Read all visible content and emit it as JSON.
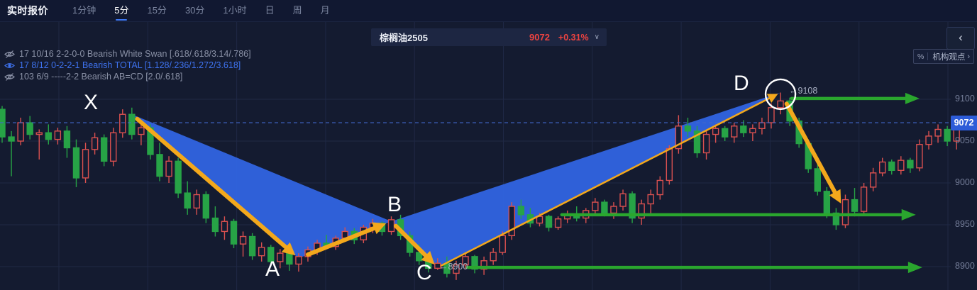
{
  "toolbar": {
    "title": "实时报价",
    "timeframes": [
      "1分钟",
      "5分",
      "15分",
      "30分",
      "1小时",
      "日",
      "周",
      "月"
    ],
    "active_timeframe": "5分"
  },
  "quote": {
    "symbol": "棕榈油2505",
    "price": "9072",
    "change_percent": "+0.31%"
  },
  "icons": {
    "chevron_left": "‹",
    "chevron_down": "∨",
    "angle_right": "›",
    "percent": "%"
  },
  "side_panel": {
    "institution_label": "机构观点"
  },
  "indicators": [
    {
      "visible": false,
      "text": "17 10/16 2-2-0-0 Bearish White Swan [.618/.618/3.14/.786]"
    },
    {
      "visible": true,
      "text": "17 8/12 0-2-2-1 Bearish TOTAL [1.128/.236/1.272/3.618]"
    },
    {
      "visible": false,
      "text": "103 6/9 -----2-2 Bearish AB=CD [2.0/.618]"
    }
  ],
  "annotations": {
    "d_label": "←9108",
    "c_label": "←8900"
  },
  "colors": {
    "up": "#d9504f",
    "down": "#27a346",
    "pattern_fill": "#3064e2",
    "pattern_arrow": "#f3a81c",
    "level_arrow": "#2aa62e",
    "price_line": "#4268cc",
    "grid": "#1f2845",
    "badge": "#2d5cd8"
  },
  "chart_data": {
    "type": "candlestick",
    "symbol": "棕榈油2505",
    "timeframe": "5分",
    "y_axis": {
      "ticks": [
        9100,
        9050,
        9000,
        8950,
        8900
      ],
      "current_price": 9072
    },
    "pattern": {
      "name": "Bearish TOTAL",
      "points": [
        {
          "label": "X",
          "i": 14.0,
          "price": 9082
        },
        {
          "label": "A",
          "i": 32.0,
          "price": 8910
        },
        {
          "label": "B",
          "i": 42.0,
          "price": 8954
        },
        {
          "label": "C",
          "i": 47.0,
          "price": 8899
        },
        {
          "label": "D",
          "i": 84.0,
          "price": 9108
        }
      ],
      "projection_end": {
        "i": 90.6,
        "price": 8974
      },
      "circle_point": {
        "i": 84.0,
        "price": 9106,
        "radius": 21
      }
    },
    "levels": [
      {
        "price": 9101,
        "from_i": 85.2,
        "to_i": 99.0
      },
      {
        "price": 8962,
        "from_i": 60.4,
        "to_i": 98.6
      },
      {
        "price": 8899,
        "from_i": 50.2,
        "to_i": 99.3
      }
    ],
    "candles": [
      [
        9088,
        9092,
        9048,
        9055
      ],
      [
        9055,
        9062,
        9008,
        9050
      ],
      [
        9050,
        9078,
        9045,
        9072
      ],
      [
        9072,
        9080,
        9052,
        9058
      ],
      [
        9058,
        9064,
        9028,
        9060
      ],
      [
        9060,
        9070,
        9046,
        9052
      ],
      [
        9052,
        9066,
        9046,
        9062
      ],
      [
        9062,
        9068,
        9030,
        9042
      ],
      [
        9042,
        9052,
        8995,
        9006
      ],
      [
        9006,
        9048,
        9000,
        9040
      ],
      [
        9040,
        9060,
        9034,
        9054
      ],
      [
        9054,
        9058,
        9020,
        9026
      ],
      [
        9026,
        9066,
        9020,
        9060
      ],
      [
        9060,
        9088,
        9054,
        9082
      ],
      [
        9082,
        9090,
        9052,
        9058
      ],
      [
        9058,
        9072,
        9045,
        9066
      ],
      [
        9066,
        9070,
        9028,
        9034
      ],
      [
        9034,
        9048,
        9002,
        9008
      ],
      [
        9008,
        9032,
        9000,
        9026
      ],
      [
        9026,
        9030,
        8982,
        8988
      ],
      [
        8988,
        9002,
        8962,
        8970
      ],
      [
        8970,
        8992,
        8962,
        8986
      ],
      [
        8986,
        8990,
        8952,
        8958
      ],
      [
        8958,
        8972,
        8936,
        8942
      ],
      [
        8942,
        8960,
        8932,
        8954
      ],
      [
        8954,
        8957,
        8922,
        8927
      ],
      [
        8927,
        8942,
        8912,
        8936
      ],
      [
        8936,
        8940,
        8908,
        8913
      ],
      [
        8913,
        8929,
        8906,
        8923
      ],
      [
        8923,
        8926,
        8900,
        8906
      ],
      [
        8906,
        8921,
        8898,
        8916
      ],
      [
        8916,
        8919,
        8895,
        8903
      ],
      [
        8903,
        8916,
        8894,
        8912
      ],
      [
        8912,
        8924,
        8906,
        8920
      ],
      [
        8920,
        8932,
        8914,
        8928
      ],
      [
        8928,
        8938,
        8922,
        8924
      ],
      [
        8924,
        8937,
        8920,
        8934
      ],
      [
        8934,
        8947,
        8930,
        8942
      ],
      [
        8942,
        8946,
        8927,
        8932
      ],
      [
        8932,
        8950,
        8928,
        8947
      ],
      [
        8947,
        8957,
        8940,
        8952
      ],
      [
        8952,
        8954,
        8937,
        8942
      ],
      [
        8942,
        8960,
        8938,
        8956
      ],
      [
        8956,
        8962,
        8932,
        8937
      ],
      [
        8937,
        8942,
        8912,
        8917
      ],
      [
        8917,
        8927,
        8902,
        8907
      ],
      [
        8907,
        8914,
        8893,
        8898
      ],
      [
        8898,
        8910,
        8896,
        8904
      ],
      [
        8904,
        8912,
        8887,
        8892
      ],
      [
        8892,
        8907,
        8884,
        8902
      ],
      [
        8902,
        8917,
        8897,
        8912
      ],
      [
        8912,
        8914,
        8892,
        8897
      ],
      [
        8897,
        8912,
        8890,
        8907
      ],
      [
        8907,
        8922,
        8902,
        8917
      ],
      [
        8917,
        8942,
        8914,
        8937
      ],
      [
        8937,
        8977,
        8932,
        8972
      ],
      [
        8972,
        8980,
        8957,
        8962
      ],
      [
        8962,
        8970,
        8947,
        8952
      ],
      [
        8952,
        8964,
        8948,
        8960
      ],
      [
        8960,
        8962,
        8942,
        8947
      ],
      [
        8947,
        8960,
        8944,
        8957
      ],
      [
        8957,
        8967,
        8952,
        8962
      ],
      [
        8962,
        8972,
        8954,
        8958
      ],
      [
        8958,
        8970,
        8952,
        8967
      ],
      [
        8967,
        8982,
        8962,
        8977
      ],
      [
        8977,
        8980,
        8960,
        8964
      ],
      [
        8964,
        8977,
        8957,
        8972
      ],
      [
        8972,
        8992,
        8967,
        8987
      ],
      [
        8987,
        8990,
        8952,
        8958
      ],
      [
        8958,
        8980,
        8950,
        8975
      ],
      [
        8975,
        8992,
        8962,
        8986
      ],
      [
        8986,
        9008,
        8980,
        9003
      ],
      [
        9003,
        9045,
        8998,
        9041
      ],
      [
        9041,
        9081,
        9035,
        9068
      ],
      [
        9068,
        9078,
        9055,
        9062
      ],
      [
        9062,
        9068,
        9030,
        9036
      ],
      [
        9036,
        9062,
        9028,
        9058
      ],
      [
        9058,
        9070,
        9048,
        9065
      ],
      [
        9065,
        9068,
        9050,
        9055
      ],
      [
        9055,
        9072,
        9048,
        9068
      ],
      [
        9068,
        9075,
        9055,
        9060
      ],
      [
        9060,
        9070,
        9050,
        9065
      ],
      [
        9065,
        9078,
        9058,
        9072
      ],
      [
        9072,
        9095,
        9065,
        9090
      ],
      [
        9090,
        9108,
        9082,
        9098
      ],
      [
        9098,
        9102,
        9068,
        9074
      ],
      [
        9074,
        9078,
        9042,
        9047
      ],
      [
        9047,
        9052,
        9012,
        9017
      ],
      [
        9017,
        9022,
        8985,
        8990
      ],
      [
        8990,
        8995,
        8958,
        8964
      ],
      [
        8964,
        8970,
        8944,
        8950
      ],
      [
        8950,
        8986,
        8946,
        8980
      ],
      [
        8980,
        8994,
        8960,
        8966
      ],
      [
        8966,
        9000,
        8962,
        8995
      ],
      [
        8995,
        9018,
        8990,
        9012
      ],
      [
        9012,
        9030,
        9008,
        9025
      ],
      [
        9025,
        9028,
        9010,
        9015
      ],
      [
        9015,
        9032,
        9010,
        9027
      ],
      [
        9027,
        9030,
        9012,
        9018
      ],
      [
        9018,
        9052,
        9014,
        9046
      ],
      [
        9046,
        9062,
        9040,
        9056
      ],
      [
        9056,
        9070,
        9048,
        9064
      ],
      [
        9064,
        9068,
        9044,
        9050
      ],
      [
        9050,
        9078,
        9040,
        9068
      ]
    ]
  }
}
